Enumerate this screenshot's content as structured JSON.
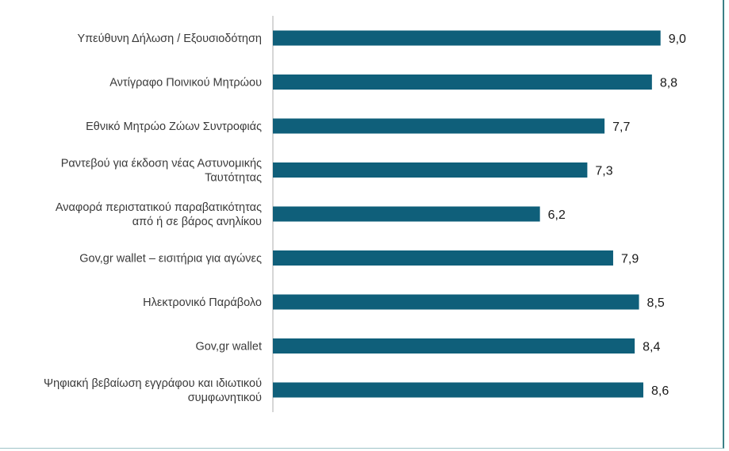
{
  "chart_data": {
    "type": "bar",
    "orientation": "horizontal",
    "categories": [
      [
        "Υπεύθυνη Δήλωση / Εξουσιοδότηση"
      ],
      [
        "Αντίγραφο Ποινικού Μητρώου"
      ],
      [
        "Εθνικό Μητρώο Ζώων Συντροφιάς"
      ],
      [
        "Ραντεβού για έκδοση νέας Αστυνομικής",
        "Ταυτότητας"
      ],
      [
        "Αναφορά περιστατικού παραβατικότητας",
        "από ή σε βάρος ανηλίκου"
      ],
      [
        "Gov,gr wallet – εισιτήρια για αγώνες"
      ],
      [
        "Ηλεκτρονικό Παράβολο"
      ],
      [
        "Gov,gr wallet"
      ],
      [
        "Ψηφιακή βεβαίωση εγγράφου και ιδιωτικού",
        "συμφωνητικού"
      ]
    ],
    "values": [
      9.0,
      8.8,
      7.7,
      7.3,
      6.2,
      7.9,
      8.5,
      8.4,
      8.6
    ],
    "value_labels": [
      "9,0",
      "8,8",
      "7,7",
      "7,3",
      "6,2",
      "7,9",
      "8,5",
      "8,4",
      "8,6"
    ],
    "xlim": [
      0,
      10
    ],
    "title": "",
    "xlabel": "",
    "ylabel": "",
    "grid": false,
    "legend": "none",
    "colors": {
      "bar": "#0f5f7a",
      "axis": "#c8c8c8",
      "frame_accent": "#3b7f86"
    }
  }
}
